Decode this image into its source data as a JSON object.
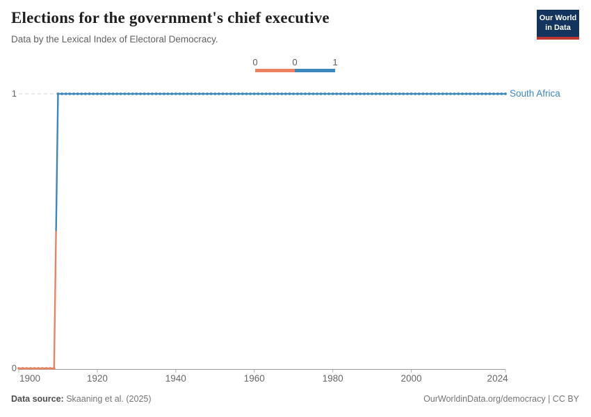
{
  "header": {
    "title": "Elections for the government's chief executive",
    "subtitle": "Data by the Lexical Index of Electoral Democracy."
  },
  "logo": {
    "line1": "Our World",
    "line2": "in Data",
    "bg_color": "#13345E",
    "underline_color": "#C0362C"
  },
  "legend": {
    "labels": [
      "0",
      "0",
      "1"
    ],
    "segment_colors": [
      "#ED8262",
      "#3C87BE"
    ]
  },
  "chart_data": {
    "type": "line",
    "title": "Elections for the government's chief executive",
    "subtitle": "Data by the Lexical Index of Electoral Democracy.",
    "style": "step line with yearly point markers, colored by value (0 = orange, 1 = blue)",
    "x_range": [
      1900,
      2024
    ],
    "y_range": [
      0,
      1
    ],
    "x_ticks": [
      1900,
      1920,
      1940,
      1960,
      1980,
      2000,
      2024
    ],
    "y_ticks": [
      0,
      1
    ],
    "grid": "dashed horizontal gridline at y=1, solid gray x-axis at y=0",
    "legend_position": "top center",
    "value_colors": {
      "0": "#ED8262",
      "1": "#3C87BE"
    },
    "series": [
      {
        "name": "South Africa",
        "label_color": "#3C87BE",
        "segments": [
          {
            "from_year": 1900,
            "to_year": 1909,
            "value": 0
          },
          {
            "from_year": 1910,
            "to_year": 2024,
            "value": 1
          }
        ]
      }
    ]
  },
  "axis_colors": {
    "axis_line": "#9a9a9a",
    "tick_mark": "#b0b0b0",
    "gridline": "#d4d4d4"
  },
  "footer": {
    "source_label": "Data source:",
    "source_value": " Skaaning et al. (2025)",
    "right_text": "OurWorldinData.org/democracy | CC BY"
  }
}
